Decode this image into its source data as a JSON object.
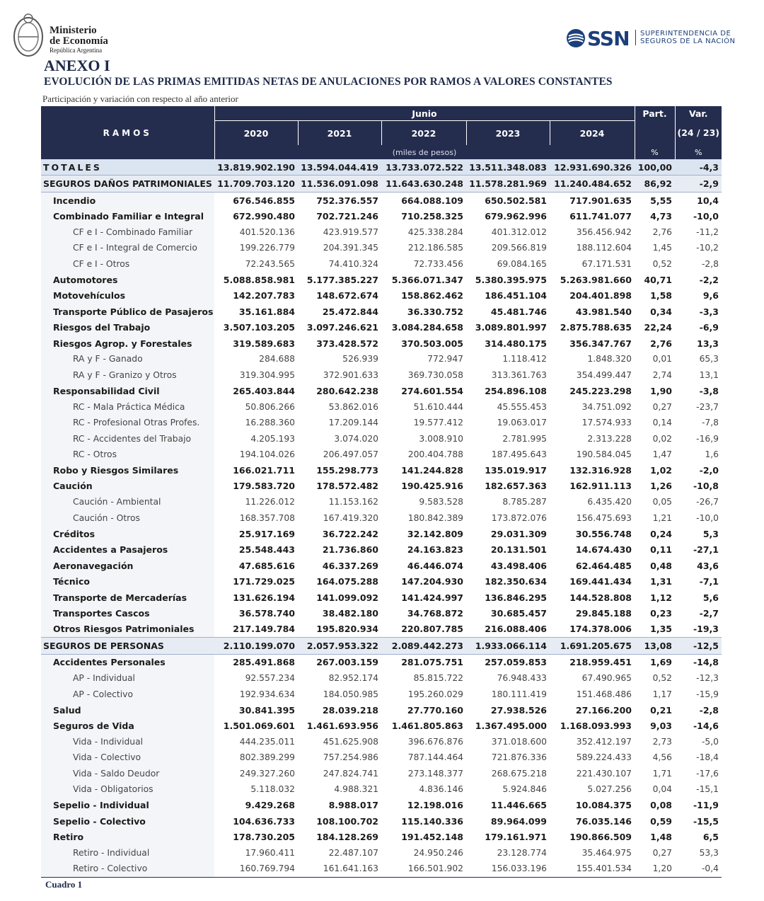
{
  "header": {
    "ministry": [
      "Ministerio",
      "de Economía",
      "República Argentina"
    ],
    "ssn": "SSN",
    "ssn_name": [
      "SUPERINTENDENCIA DE",
      "SEGUROS DE LA NACIÓN"
    ],
    "title": "ANEXO I",
    "subtitle": "EVOLUCIÓN DE LAS PRIMAS EMITIDAS NETAS DE ANULACIONES POR RAMOS A VALORES CONSTANTES",
    "note": "Participación y variación con respecto al año anterior"
  },
  "table": {
    "ramos": "RAMOS",
    "period": "Junio",
    "years": [
      "2020",
      "2021",
      "2022",
      "2023",
      "2024"
    ],
    "units": "(miles de pesos)",
    "part": "Part.",
    "part_unit": "%",
    "var": "Var.",
    "var_sub": "(24 / 23)",
    "var_unit": "%",
    "totals": {
      "label": "TOTALES",
      "values": [
        "13.819.902.190",
        "13.594.044.419",
        "13.733.072.522",
        "13.511.348.083",
        "12.931.690.326",
        "100,00",
        "-4,3"
      ]
    },
    "sections": [
      {
        "label": "SEGUROS DAÑOS PATRIMONIALES",
        "values": [
          "11.709.703.120",
          "11.536.091.098",
          "11.643.630.248",
          "11.578.281.969",
          "11.240.484.652",
          "86,92",
          "-2,9"
        ],
        "items": [
          {
            "label": "Incendio",
            "values": [
              "676.546.855",
              "752.376.557",
              "664.088.109",
              "650.502.581",
              "717.901.635",
              "5,55",
              "10,4"
            ]
          },
          {
            "label": "Combinado Familiar e Integral",
            "values": [
              "672.990.480",
              "702.721.246",
              "710.258.325",
              "679.962.996",
              "611.741.077",
              "4,73",
              "-10,0"
            ],
            "children": [
              {
                "label": "CF e I - Combinado Familiar",
                "values": [
                  "401.520.136",
                  "423.919.577",
                  "425.338.284",
                  "401.312.012",
                  "356.456.942",
                  "2,76",
                  "-11,2"
                ]
              },
              {
                "label": "CF e I - Integral de Comercio",
                "values": [
                  "199.226.779",
                  "204.391.345",
                  "212.186.585",
                  "209.566.819",
                  "188.112.604",
                  "1,45",
                  "-10,2"
                ]
              },
              {
                "label": "CF e I - Otros",
                "values": [
                  "72.243.565",
                  "74.410.324",
                  "72.733.456",
                  "69.084.165",
                  "67.171.531",
                  "0,52",
                  "-2,8"
                ]
              }
            ]
          },
          {
            "label": "Automotores",
            "values": [
              "5.088.858.981",
              "5.177.385.227",
              "5.366.071.347",
              "5.380.395.975",
              "5.263.981.660",
              "40,71",
              "-2,2"
            ]
          },
          {
            "label": "Motovehículos",
            "values": [
              "142.207.783",
              "148.672.674",
              "158.862.462",
              "186.451.104",
              "204.401.898",
              "1,58",
              "9,6"
            ]
          },
          {
            "label": "Transporte Público de Pasajeros",
            "values": [
              "35.161.884",
              "25.472.844",
              "36.330.752",
              "45.481.746",
              "43.981.540",
              "0,34",
              "-3,3"
            ]
          },
          {
            "label": "Riesgos del Trabajo",
            "values": [
              "3.507.103.205",
              "3.097.246.621",
              "3.084.284.658",
              "3.089.801.997",
              "2.875.788.635",
              "22,24",
              "-6,9"
            ]
          },
          {
            "label": "Riesgos Agrop. y Forestales",
            "values": [
              "319.589.683",
              "373.428.572",
              "370.503.005",
              "314.480.175",
              "356.347.767",
              "2,76",
              "13,3"
            ],
            "children": [
              {
                "label": "RA y F - Ganado",
                "values": [
                  "284.688",
                  "526.939",
                  "772.947",
                  "1.118.412",
                  "1.848.320",
                  "0,01",
                  "65,3"
                ]
              },
              {
                "label": "RA y F - Granizo y Otros",
                "values": [
                  "319.304.995",
                  "372.901.633",
                  "369.730.058",
                  "313.361.763",
                  "354.499.447",
                  "2,74",
                  "13,1"
                ]
              }
            ]
          },
          {
            "label": "Responsabilidad Civil",
            "values": [
              "265.403.844",
              "280.642.238",
              "274.601.554",
              "254.896.108",
              "245.223.298",
              "1,90",
              "-3,8"
            ],
            "children": [
              {
                "label": "RC - Mala Práctica Médica",
                "values": [
                  "50.806.266",
                  "53.862.016",
                  "51.610.444",
                  "45.555.453",
                  "34.751.092",
                  "0,27",
                  "-23,7"
                ]
              },
              {
                "label": "RC - Profesional Otras Profes.",
                "values": [
                  "16.288.360",
                  "17.209.144",
                  "19.577.412",
                  "19.063.017",
                  "17.574.933",
                  "0,14",
                  "-7,8"
                ]
              },
              {
                "label": "RC - Accidentes del Trabajo",
                "values": [
                  "4.205.193",
                  "3.074.020",
                  "3.008.910",
                  "2.781.995",
                  "2.313.228",
                  "0,02",
                  "-16,9"
                ]
              },
              {
                "label": "RC - Otros",
                "values": [
                  "194.104.026",
                  "206.497.057",
                  "200.404.788",
                  "187.495.643",
                  "190.584.045",
                  "1,47",
                  "1,6"
                ]
              }
            ]
          },
          {
            "label": "Robo y Riesgos Similares",
            "values": [
              "166.021.711",
              "155.298.773",
              "141.244.828",
              "135.019.917",
              "132.316.928",
              "1,02",
              "-2,0"
            ]
          },
          {
            "label": "Caución",
            "values": [
              "179.583.720",
              "178.572.482",
              "190.425.916",
              "182.657.363",
              "162.911.113",
              "1,26",
              "-10,8"
            ],
            "children": [
              {
                "label": "Caución - Ambiental",
                "values": [
                  "11.226.012",
                  "11.153.162",
                  "9.583.528",
                  "8.785.287",
                  "6.435.420",
                  "0,05",
                  "-26,7"
                ]
              },
              {
                "label": "Caución - Otros",
                "values": [
                  "168.357.708",
                  "167.419.320",
                  "180.842.389",
                  "173.872.076",
                  "156.475.693",
                  "1,21",
                  "-10,0"
                ]
              }
            ]
          },
          {
            "label": "Créditos",
            "values": [
              "25.917.169",
              "36.722.242",
              "32.142.809",
              "29.031.309",
              "30.556.748",
              "0,24",
              "5,3"
            ]
          },
          {
            "label": "Accidentes a Pasajeros",
            "values": [
              "25.548.443",
              "21.736.860",
              "24.163.823",
              "20.131.501",
              "14.674.430",
              "0,11",
              "-27,1"
            ]
          },
          {
            "label": "Aeronavegación",
            "values": [
              "47.685.616",
              "46.337.269",
              "46.446.074",
              "43.498.406",
              "62.464.485",
              "0,48",
              "43,6"
            ]
          },
          {
            "label": "Técnico",
            "values": [
              "171.729.025",
              "164.075.288",
              "147.204.930",
              "182.350.634",
              "169.441.434",
              "1,31",
              "-7,1"
            ]
          },
          {
            "label": "Transporte de Mercaderías",
            "values": [
              "131.626.194",
              "141.099.092",
              "141.424.997",
              "136.846.295",
              "144.528.808",
              "1,12",
              "5,6"
            ]
          },
          {
            "label": "Transportes Cascos",
            "values": [
              "36.578.740",
              "38.482.180",
              "34.768.872",
              "30.685.457",
              "29.845.188",
              "0,23",
              "-2,7"
            ]
          },
          {
            "label": "Otros Riesgos Patrimoniales",
            "values": [
              "217.149.784",
              "195.820.934",
              "220.807.785",
              "216.088.406",
              "174.378.006",
              "1,35",
              "-19,3"
            ]
          }
        ]
      },
      {
        "label": "SEGUROS DE PERSONAS",
        "values": [
          "2.110.199.070",
          "2.057.953.322",
          "2.089.442.273",
          "1.933.066.114",
          "1.691.205.675",
          "13,08",
          "-12,5"
        ],
        "items": [
          {
            "label": "Accidentes Personales",
            "values": [
              "285.491.868",
              "267.003.159",
              "281.075.751",
              "257.059.853",
              "218.959.451",
              "1,69",
              "-14,8"
            ],
            "children": [
              {
                "label": "AP - Individual",
                "values": [
                  "92.557.234",
                  "82.952.174",
                  "85.815.722",
                  "76.948.433",
                  "67.490.965",
                  "0,52",
                  "-12,3"
                ]
              },
              {
                "label": "AP - Colectivo",
                "values": [
                  "192.934.634",
                  "184.050.985",
                  "195.260.029",
                  "180.111.419",
                  "151.468.486",
                  "1,17",
                  "-15,9"
                ]
              }
            ]
          },
          {
            "label": "Salud",
            "values": [
              "30.841.395",
              "28.039.218",
              "27.770.160",
              "27.938.526",
              "27.166.200",
              "0,21",
              "-2,8"
            ]
          },
          {
            "label": "Seguros de Vida",
            "values": [
              "1.501.069.601",
              "1.461.693.956",
              "1.461.805.863",
              "1.367.495.000",
              "1.168.093.993",
              "9,03",
              "-14,6"
            ],
            "children": [
              {
                "label": "Vida - Individual",
                "values": [
                  "444.235.011",
                  "451.625.908",
                  "396.676.876",
                  "371.018.600",
                  "352.412.197",
                  "2,73",
                  "-5,0"
                ]
              },
              {
                "label": "Vida - Colectivo",
                "values": [
                  "802.389.299",
                  "757.254.986",
                  "787.144.464",
                  "721.876.336",
                  "589.224.433",
                  "4,56",
                  "-18,4"
                ]
              },
              {
                "label": "Vida - Saldo Deudor",
                "values": [
                  "249.327.260",
                  "247.824.741",
                  "273.148.377",
                  "268.675.218",
                  "221.430.107",
                  "1,71",
                  "-17,6"
                ]
              },
              {
                "label": "Vida - Obligatorios",
                "values": [
                  "5.118.032",
                  "4.988.321",
                  "4.836.146",
                  "5.924.846",
                  "5.027.256",
                  "0,04",
                  "-15,1"
                ]
              }
            ]
          },
          {
            "label": "Sepelio - Individual",
            "values": [
              "9.429.268",
              "8.988.017",
              "12.198.016",
              "11.446.665",
              "10.084.375",
              "0,08",
              "-11,9"
            ]
          },
          {
            "label": "Sepelio - Colectivo",
            "values": [
              "104.636.733",
              "108.100.702",
              "115.140.336",
              "89.964.099",
              "76.035.146",
              "0,59",
              "-15,5"
            ]
          },
          {
            "label": "Retiro",
            "values": [
              "178.730.205",
              "184.128.269",
              "191.452.148",
              "179.161.971",
              "190.866.509",
              "1,48",
              "6,5"
            ],
            "children": [
              {
                "label": "Retiro - Individual",
                "values": [
                  "17.960.411",
                  "22.487.107",
                  "24.950.246",
                  "23.128.774",
                  "35.464.975",
                  "0,27",
                  "53,3"
                ]
              },
              {
                "label": "Retiro - Colectivo",
                "values": [
                  "160.769.794",
                  "161.641.163",
                  "166.501.902",
                  "156.033.196",
                  "155.401.534",
                  "1,20",
                  "-0,4"
                ]
              }
            ]
          }
        ]
      }
    ]
  },
  "footer": "Cuadro 1"
}
